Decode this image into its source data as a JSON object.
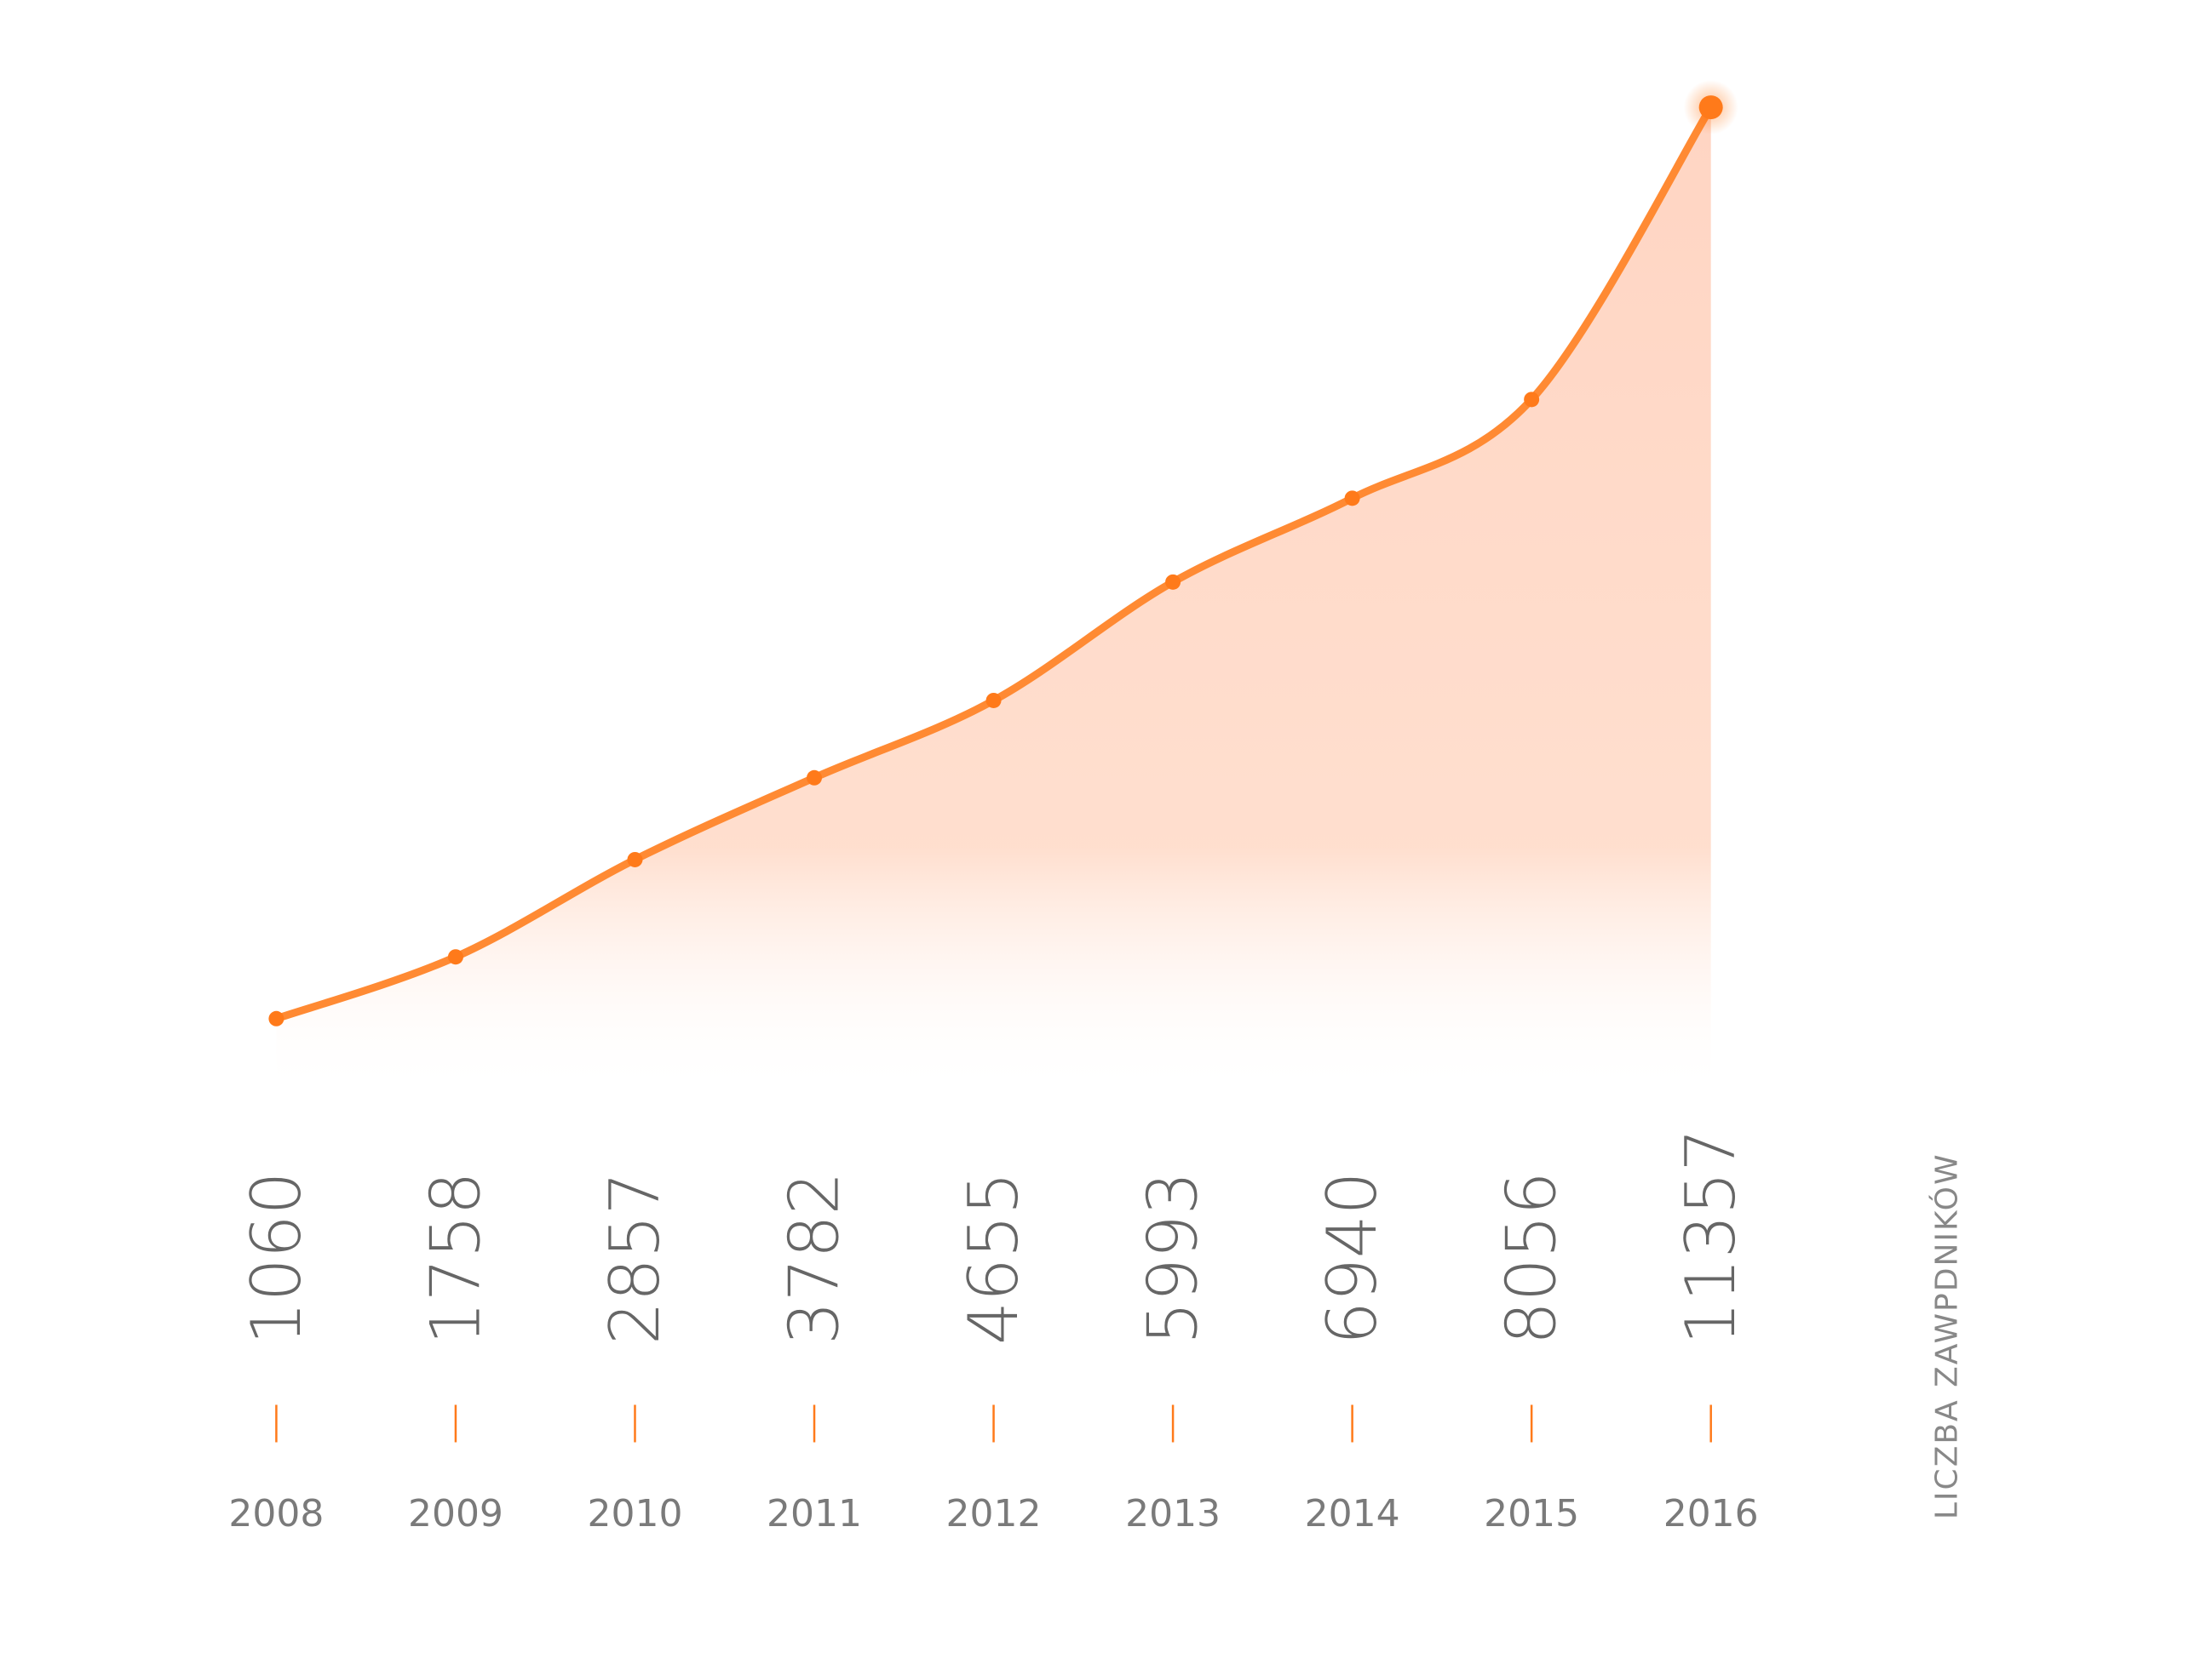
{
  "chart_data": {
    "type": "area",
    "x": [
      "2008",
      "2009",
      "2010",
      "2011",
      "2012",
      "2013",
      "2014",
      "2015",
      "2016"
    ],
    "series": [
      {
        "name": "LICZBA ZAWPDNIKÓW",
        "values": [
          1060,
          1758,
          2857,
          3782,
          4655,
          5993,
          6940,
          8056,
          11357
        ]
      }
    ],
    "data_labels": [
      "1060",
      "1758",
      "2857",
      "3782",
      "4655",
      "5993",
      "6940",
      "8056",
      "11357"
    ],
    "title": "",
    "xlabel": "",
    "ylabel": "",
    "legend": "none",
    "grid": false,
    "highlight_last_point": true
  },
  "colors": {
    "accent": "#ff7a1a",
    "line": "#ff8a33",
    "fill": "#ffd6c2",
    "axis_line": "#ff7a1a",
    "text": "#666666",
    "year_text": "#7a7a7a"
  }
}
